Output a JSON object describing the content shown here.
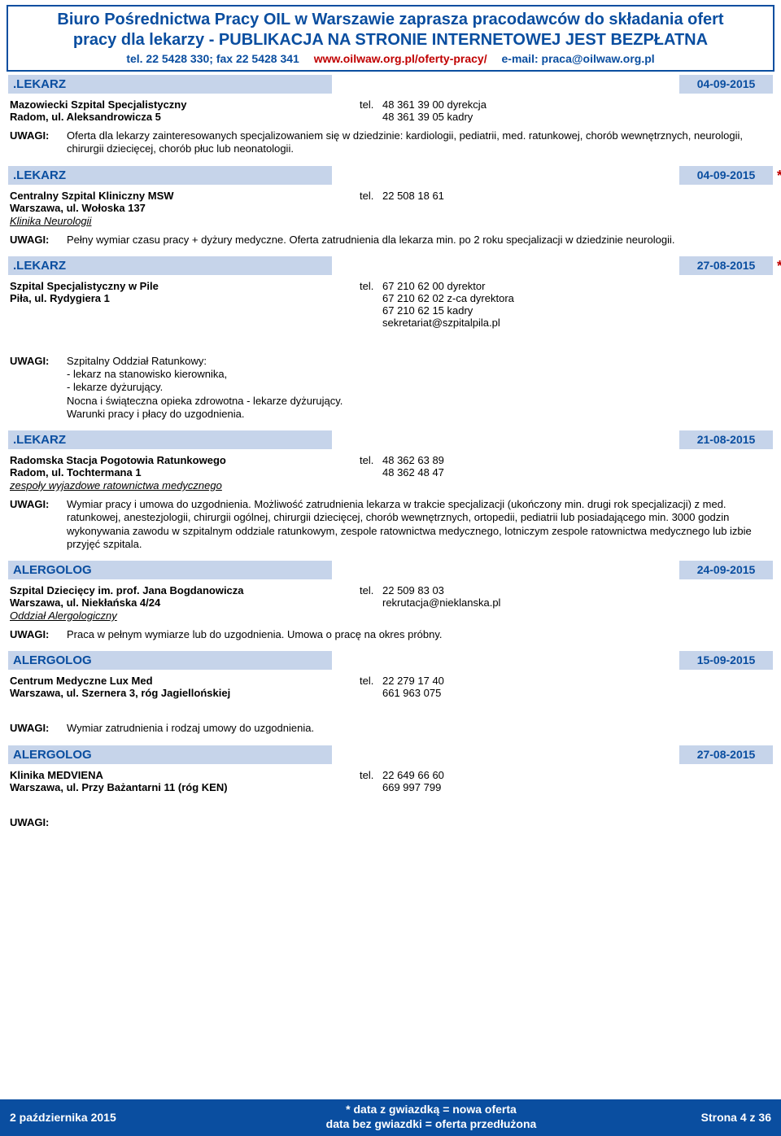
{
  "header": {
    "title_line1": "Biuro Pośrednictwa Pracy OIL w Warszawie zaprasza pracodawców do składania ofert",
    "title_line2": "pracy dla lekarzy - PUBLIKACJA NA STRONIE INTERNETOWEJ JEST BEZPŁATNA",
    "phone": "tel. 22 5428 330; fax 22 5428 341",
    "url": "www.oilwaw.org.pl/oferty-pracy/",
    "email": "e-mail: praca@oilwaw.org.pl"
  },
  "listings": [
    {
      "title": ".LEKARZ",
      "date": "04-09-2015",
      "star": false,
      "org": "Mazowiecki Szpital Specjalistyczny",
      "addr": "Radom, ul. Aleksandrowicza 5",
      "dept": "",
      "tel_label": "tel.",
      "tel_lines": [
        "48 361 39 00 dyrekcja",
        "48 361 39 05 kadry"
      ],
      "remarks_label": "UWAGI:",
      "remarks": "Oferta dla lekarzy zainteresowanych specjalizowaniem się w dziedzinie: kardiologii, pediatrii, med. ratunkowej, chorób wewnętrznych, neurologii, chirurgii dziecięcej, chorób płuc lub neonatologii."
    },
    {
      "title": ".LEKARZ",
      "date": "04-09-2015",
      "star": true,
      "org": "Centralny Szpital Kliniczny MSW",
      "addr": "Warszawa, ul. Wołoska 137",
      "dept": "Klinika Neurologii",
      "tel_label": "tel.",
      "tel_lines": [
        "22 508 18 61"
      ],
      "remarks_label": "UWAGI:",
      "remarks": "Pełny wymiar czasu pracy + dyżury medyczne. Oferta zatrudnienia dla lekarza min. po 2 roku  specjalizacji w dziedzinie neurologii."
    },
    {
      "title": ".LEKARZ",
      "date": "27-08-2015",
      "star": true,
      "org": "Szpital Specjalistyczny w Pile",
      "addr": "Piła, ul. Rydygiera 1",
      "dept": "",
      "tel_label": "tel.",
      "tel_lines": [
        "67 210 62 00 dyrektor",
        "67 210 62 02 z-ca dyrektora",
        "67 210 62 15 kadry",
        "sekretariat@szpitalpila.pl"
      ],
      "remarks_label": "UWAGI:",
      "remarks": "Szpitalny Oddział Ratunkowy:\n- lekarz na stanowisko kierownika,\n- lekarze dyżurujący.\nNocna i  świąteczna opieka zdrowotna - lekarze dyżurujący.\nWarunki pracy i płacy do uzgodnienia."
    },
    {
      "title": ".LEKARZ",
      "date": "21-08-2015",
      "star": false,
      "org": "Radomska Stacja Pogotowia Ratunkowego",
      "addr": "Radom, ul. Tochtermana 1",
      "dept": "zespoły wyjazdowe ratownictwa medycznego",
      "tel_label": "tel.",
      "tel_lines": [
        "48 362 63 89",
        "48 362 48 47"
      ],
      "remarks_label": "UWAGI:",
      "remarks": "Wymiar pracy i umowa do uzgodnienia. Możliwość zatrudnienia lekarza w trakcie specjalizacji (ukończony min. drugi rok specjalizacji) z med. ratunkowej, anestezjologii, chirurgii ogólnej, chirurgii dziecięcej, chorób wewnętrznych, ortopedii, pediatrii lub posiadającego min. 3000 godzin wykonywania zawodu w szpitalnym oddziale ratunkowym, zespole ratownictwa medycznego, lotniczym zespole ratownictwa medycznego lub izbie przyjęć szpitala."
    },
    {
      "title": "ALERGOLOG",
      "date": "24-09-2015",
      "star": false,
      "org": "Szpital Dziecięcy im. prof. Jana Bogdanowicza",
      "addr": "Warszawa, ul. Niekłańska 4/24",
      "dept": "Oddział Alergologiczny",
      "tel_label": "tel.",
      "tel_lines": [
        "22 509 83 03",
        "rekrutacja@nieklanska.pl"
      ],
      "remarks_label": "UWAGI:",
      "remarks": "Praca w pełnym wymiarze lub do uzgodnienia. Umowa o pracę na okres próbny."
    },
    {
      "title": "ALERGOLOG",
      "date": "15-09-2015",
      "star": false,
      "org": "Centrum Medyczne Lux Med",
      "addr": "Warszawa, ul. Szernera 3, róg Jagiellońskiej",
      "dept": "",
      "tel_label": "tel.",
      "tel_lines": [
        "22 279 17 40",
        "661 963 075"
      ],
      "remarks_label": "UWAGI:",
      "remarks": "Wymiar zatrudnienia i rodzaj umowy do uzgodnienia."
    },
    {
      "title": "ALERGOLOG",
      "date": "27-08-2015",
      "star": false,
      "org": "Klinika MEDVIENA",
      "addr": "Warszawa, ul. Przy Bażantarni 11 (róg KEN)",
      "dept": "",
      "tel_label": "tel.",
      "tel_lines": [
        "22 649 66 60",
        "669 997 799"
      ],
      "remarks_label": "UWAGI:",
      "remarks": ""
    }
  ],
  "footer": {
    "left": "2 października 2015",
    "center_line1": "* data z gwiazdką = nowa oferta",
    "center_line2": "data bez gwiazdki = oferta przedłużona",
    "right": "Strona 4 z 36"
  },
  "style": {
    "accent": "#0a4ea0",
    "bar_bg": "#c6d4ea",
    "star_color": "#c00000"
  }
}
